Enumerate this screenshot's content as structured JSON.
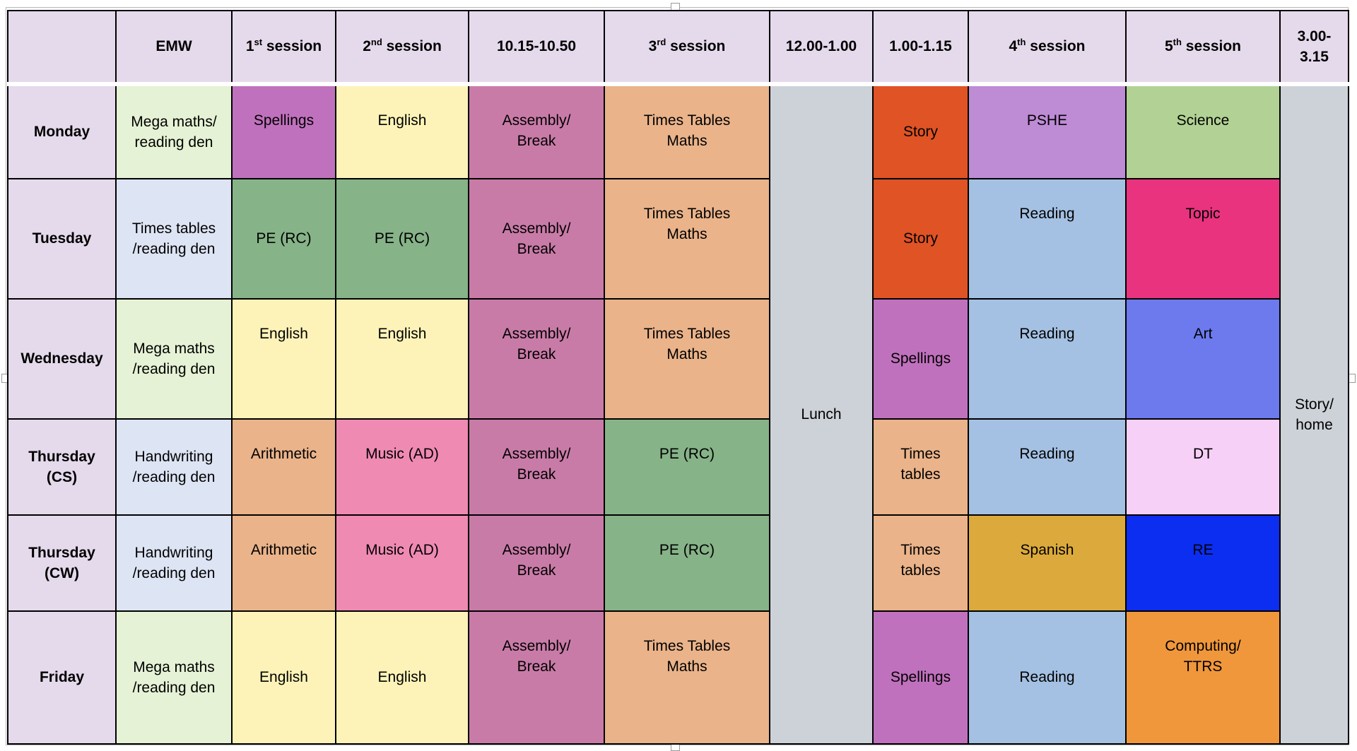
{
  "colors": {
    "header": "#e5daeb",
    "lunch": "#cdd2d8",
    "mega_maths": "#e5f2d5",
    "times_tables_den": "#dde4f4",
    "spellings": "#c071bd",
    "english": "#fdf3b8",
    "pe": "#86b388",
    "assembly": "#c97ba8",
    "maths": "#eab38a",
    "music": "#ef8ab3",
    "story": "#df5325",
    "pshe": "#be8bd5",
    "science": "#b1d294",
    "reading": "#a4c1e3",
    "topic": "#e9337f",
    "art": "#6c7aee",
    "dt": "#f7d0f8",
    "spanish": "#dcaa3c",
    "re": "#0c2ef0",
    "computing": "#f0973c"
  },
  "header": {
    "emw": "EMW",
    "s1_num": "1",
    "s1_sup": "st",
    "s1_rest": " session",
    "s2_num": "2",
    "s2_sup": "nd",
    "s2_rest": " session",
    "break_time": "10.15-10.50",
    "s3_num": "3",
    "s3_sup": "rd",
    "s3_rest": " session",
    "lunch_time": "12.00-1.00",
    "story_time": "1.00-1.15",
    "s4_num": "4",
    "s4_sup": "th",
    "s4_rest": " session",
    "s5_num": "5",
    "s5_sup": "th",
    "s5_rest": " session",
    "end_time_1": "3.00-",
    "end_time_2": "3.15"
  },
  "lunch_label": "Lunch",
  "home_1": "Story/",
  "home_2": "home",
  "rows": [
    {
      "day_1": "Monday",
      "day_2": "",
      "emw_1": "Mega maths/",
      "emw_2": "reading den",
      "s1_1": "Spellings",
      "s1_2": "",
      "s2_1": "English",
      "s2_2": "",
      "brk_1": "Assembly/",
      "brk_2": "Break",
      "s3_1": "Times Tables",
      "s3_2": "Maths",
      "st_1": "Story",
      "st_2": "",
      "s4_1": "PSHE",
      "s4_2": "",
      "s5_1": "Science",
      "s5_2": ""
    },
    {
      "day_1": "Tuesday",
      "day_2": "",
      "emw_1": "Times tables",
      "emw_2": "/reading den",
      "s1_1": "PE (RC)",
      "s1_2": "",
      "s2_1": "PE (RC)",
      "s2_2": "",
      "brk_1": "Assembly/",
      "brk_2": "Break",
      "s3_1": "Times Tables",
      "s3_2": "Maths",
      "st_1": "Story",
      "st_2": "",
      "s4_1": "Reading",
      "s4_2": "",
      "s5_1": "Topic",
      "s5_2": ""
    },
    {
      "day_1": "Wednesday",
      "day_2": "",
      "emw_1": "Mega maths",
      "emw_2": "/reading den",
      "s1_1": "English",
      "s1_2": "",
      "s2_1": "English",
      "s2_2": "",
      "brk_1": "Assembly/",
      "brk_2": "Break",
      "s3_1": "Times Tables",
      "s3_2": "Maths",
      "st_1": "Spellings",
      "st_2": "",
      "s4_1": "Reading",
      "s4_2": "",
      "s5_1": "Art",
      "s5_2": ""
    },
    {
      "day_1": "Thursday",
      "day_2": "(CS)",
      "emw_1": "Handwriting",
      "emw_2": "/reading den",
      "s1_1": "Arithmetic",
      "s1_2": "",
      "s2_1": "Music (AD)",
      "s2_2": "",
      "brk_1": "Assembly/",
      "brk_2": "Break",
      "s3_1": "PE (RC)",
      "s3_2": "",
      "st_1": "Times",
      "st_2": "tables",
      "s4_1": "Reading",
      "s4_2": "",
      "s5_1": "DT",
      "s5_2": ""
    },
    {
      "day_1": "Thursday",
      "day_2": "(CW)",
      "emw_1": "Handwriting",
      "emw_2": "/reading den",
      "s1_1": "Arithmetic",
      "s1_2": "",
      "s2_1": "Music (AD)",
      "s2_2": "",
      "brk_1": "Assembly/",
      "brk_2": "Break",
      "s3_1": "PE (RC)",
      "s3_2": "",
      "st_1": "Times",
      "st_2": "tables",
      "s4_1": "Spanish",
      "s4_2": "",
      "s5_1": "RE",
      "s5_2": ""
    },
    {
      "day_1": "Friday",
      "day_2": "",
      "emw_1": "Mega maths",
      "emw_2": "/reading den",
      "s1_1": "English",
      "s1_2": "",
      "s2_1": "English",
      "s2_2": "",
      "brk_1": "Assembly/",
      "brk_2": "Break",
      "s3_1": "Times Tables",
      "s3_2": "Maths",
      "st_1": "Spellings",
      "st_2": "",
      "s4_1": "Reading",
      "s4_2": "",
      "s5_1": "Computing/",
      "s5_2": "TTRS"
    }
  ]
}
